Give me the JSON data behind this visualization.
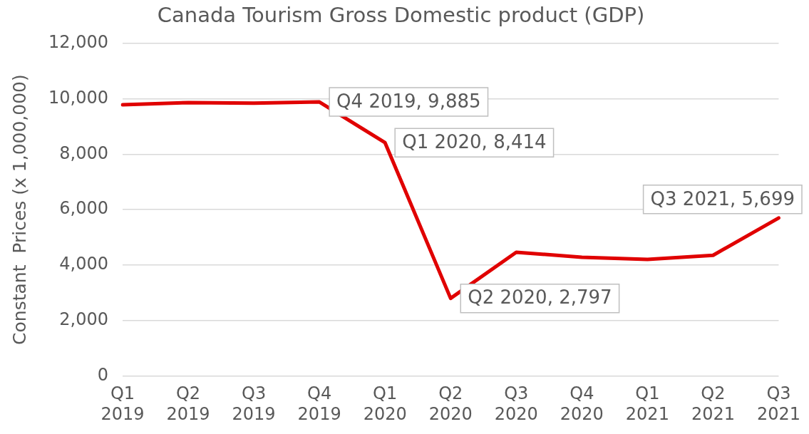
{
  "chart_data": {
    "type": "line",
    "title": "Canada Tourism Gross Domestic product (GDP)",
    "ylabel": "Constant  Prices (x 1,000,000)",
    "categories": [
      "Q1 2019",
      "Q2 2019",
      "Q3 2019",
      "Q4 2019",
      "Q1 2020",
      "Q2 2020",
      "Q3 2020",
      "Q4 2020",
      "Q1 2021",
      "Q2 2021",
      "Q3 2021"
    ],
    "series": [
      {
        "color": "#e00000",
        "values": [
          9780,
          9860,
          9840,
          9885,
          8414,
          2797,
          4460,
          4280,
          4200,
          4350,
          5699
        ],
        "value_labels": [
          null,
          null,
          null,
          "Q4 2019, 9,885",
          "Q1 2020, 8,414",
          "Q2 2020, 2,797",
          null,
          null,
          null,
          null,
          "Q3 2021, 5,699"
        ]
      }
    ],
    "ylim": [
      0,
      12000
    ],
    "yticks": [
      0,
      {
        "value": 2000,
        "label": "2,000"
      },
      {
        "value": 4000,
        "label": "4,000"
      },
      {
        "value": 6000,
        "label": "6,000"
      },
      {
        "value": 8000,
        "label": "8,000"
      },
      {
        "value": 10000,
        "label": "10,000"
      },
      {
        "value": 12000,
        "label": "12,000"
      }
    ],
    "grid": "y",
    "legend": false,
    "marker": "none",
    "line_style": "solid"
  }
}
